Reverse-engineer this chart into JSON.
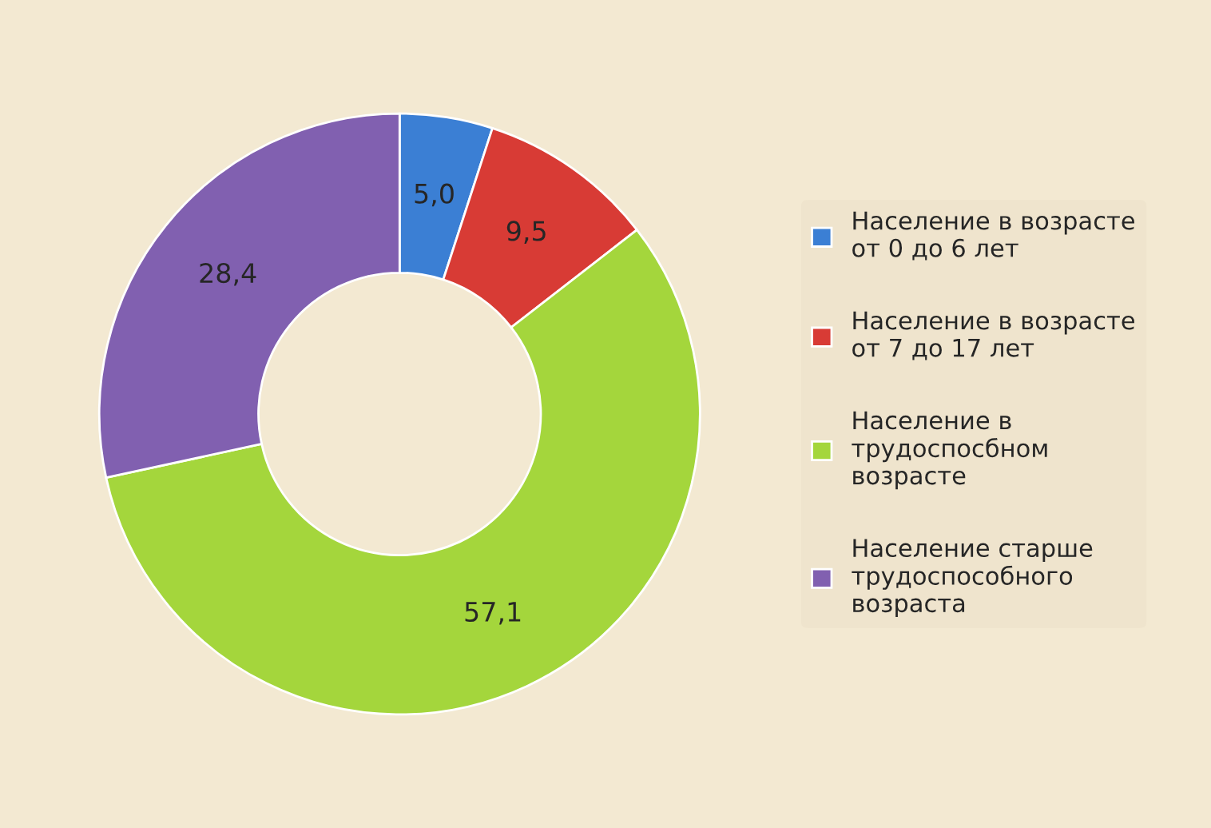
{
  "chart_data": {
    "type": "donut",
    "categories": [
      "Население в возрасте от 0 до 6 лет",
      "Население в возрасте от 7 до 17 лет",
      "Население в трудоспосбном возрасте",
      "Население старше трудоспособного возраста"
    ],
    "values": [
      5.0,
      9.5,
      57.1,
      28.4
    ],
    "value_labels": [
      "5,0",
      "9,5",
      "57,1",
      "28,4"
    ],
    "colors": [
      "#3b7fd4",
      "#d83b35",
      "#a4d63c",
      "#8160b0"
    ],
    "legend": "right"
  }
}
